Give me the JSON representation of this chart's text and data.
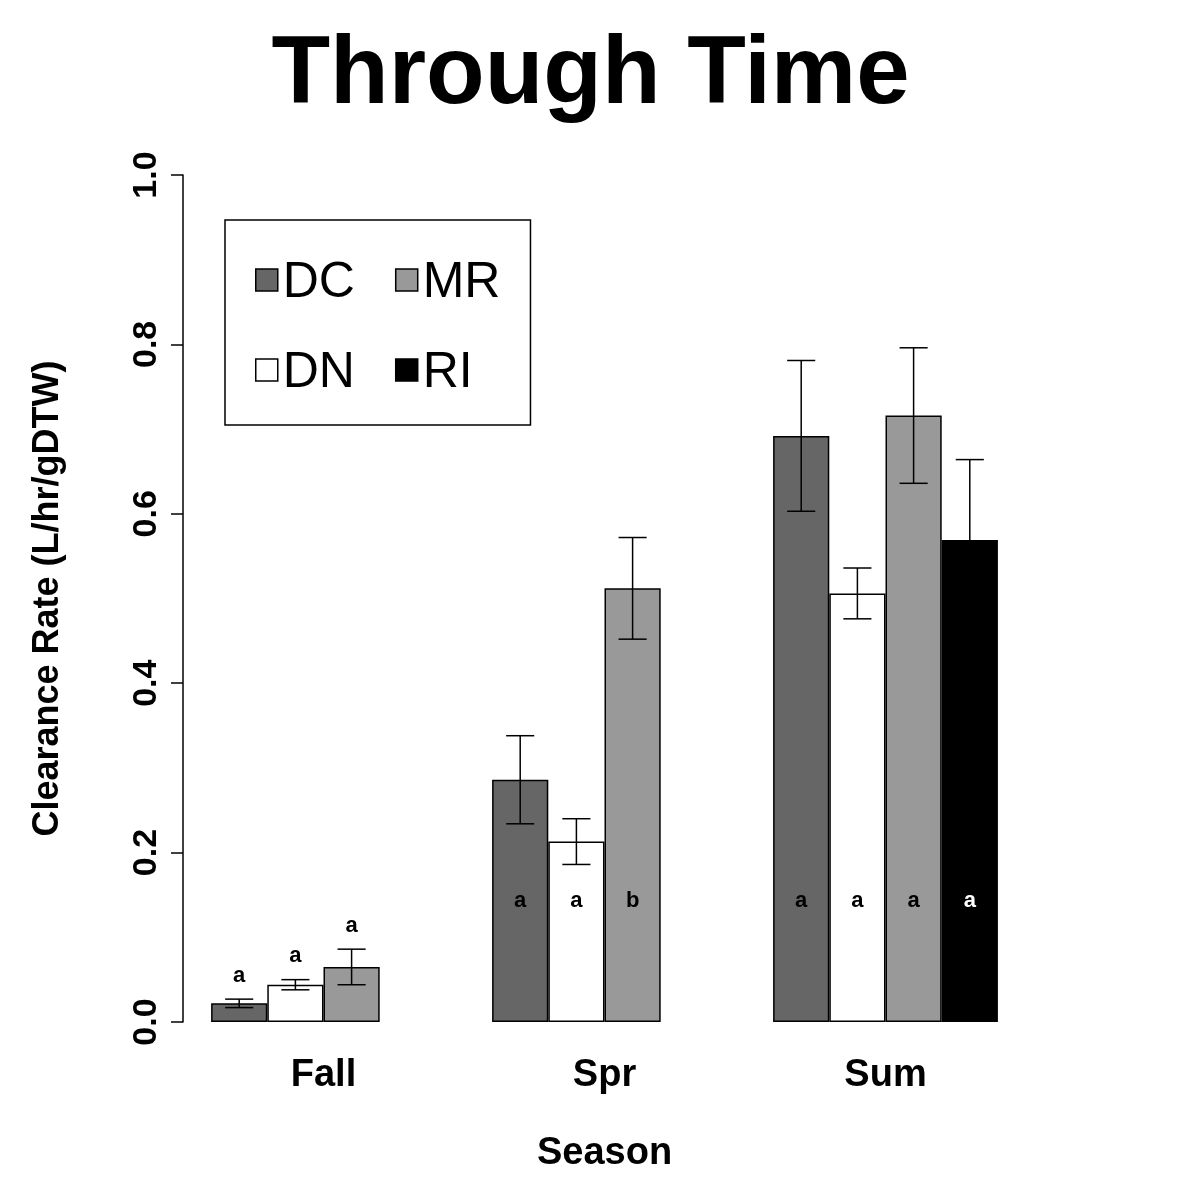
{
  "chart_data": {
    "type": "bar",
    "title": "Through Time",
    "xlabel": "Season",
    "ylabel": "Clearance Rate (L/hr/gDTW)",
    "categories": [
      "Fall",
      "Spr",
      "Sum"
    ],
    "series": [
      {
        "name": "DC",
        "color": "#666666",
        "values": [
          0.022,
          0.286,
          0.692
        ],
        "errors": [
          0.005,
          0.052,
          0.089
        ],
        "value_labels": [
          "a",
          "a",
          "a"
        ]
      },
      {
        "name": "DN",
        "color": "#ffffff",
        "values": [
          0.044,
          0.213,
          0.506
        ],
        "errors": [
          0.006,
          0.027,
          0.03
        ],
        "value_labels": [
          "a",
          "a",
          "a"
        ]
      },
      {
        "name": "MR",
        "color": "#999999",
        "values": [
          0.065,
          0.512,
          0.716
        ],
        "errors": [
          0.021,
          0.06,
          0.08
        ],
        "value_labels": [
          "a",
          "b",
          "a"
        ]
      },
      {
        "name": "RI",
        "color": "#000000",
        "values": [
          null,
          null,
          0.569
        ],
        "errors": [
          null,
          null,
          0.095
        ],
        "value_labels": [
          null,
          null,
          "a"
        ]
      }
    ],
    "ylim": [
      0,
      1
    ],
    "yticks": [
      {
        "value": 0,
        "label": "0.0"
      },
      {
        "value": 0.2,
        "label": "0.2"
      },
      {
        "value": 0.4,
        "label": "0.4"
      },
      {
        "value": 0.6,
        "label": "0.6"
      },
      {
        "value": 0.8,
        "label": "0.8"
      },
      {
        "value": 1,
        "label": "1.0"
      }
    ],
    "grid": false,
    "legend": "top left"
  }
}
